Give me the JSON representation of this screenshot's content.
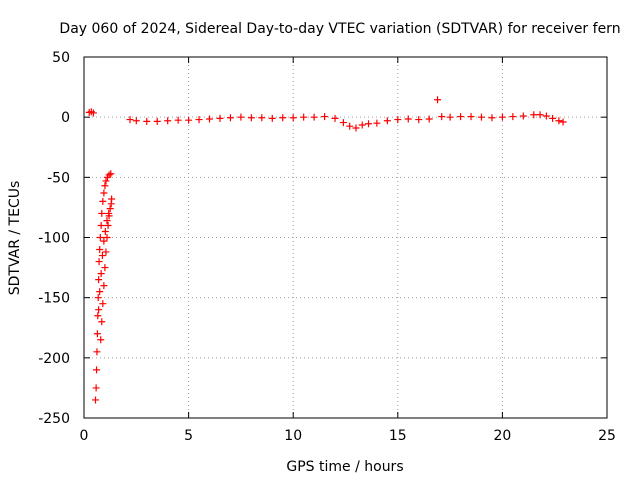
{
  "chart_data": {
    "type": "scatter",
    "title": "Day 060 of 2024, Sidereal Day-to-day VTEC variation (SDTVAR) for receiver fern",
    "xlabel": "GPS time / hours",
    "ylabel": "SDTVAR / TECUs",
    "xlim": [
      0,
      25
    ],
    "ylim": [
      -250,
      50
    ],
    "xticks": [
      0,
      5,
      10,
      15,
      20,
      25
    ],
    "yticks": [
      -250,
      -200,
      -150,
      -100,
      -50,
      0,
      50
    ],
    "xtick_labels": [
      "0",
      "5",
      "10",
      "15",
      "20",
      "25"
    ],
    "ytick_labels": [
      "-250",
      "-200",
      "-150",
      "-100",
      "-50",
      "0",
      "50"
    ],
    "grid": true,
    "marker": "+",
    "color": "#ff0000",
    "series": [
      {
        "name": "SDTVAR",
        "points": [
          [
            0.25,
            4.0
          ],
          [
            0.35,
            4.5
          ],
          [
            0.45,
            3.5
          ],
          [
            0.55,
            -235
          ],
          [
            0.58,
            -225
          ],
          [
            0.6,
            -210
          ],
          [
            0.62,
            -195
          ],
          [
            0.64,
            -180
          ],
          [
            0.66,
            -165
          ],
          [
            0.68,
            -150
          ],
          [
            0.7,
            -135
          ],
          [
            0.72,
            -120
          ],
          [
            0.75,
            -110
          ],
          [
            0.78,
            -100
          ],
          [
            0.82,
            -90
          ],
          [
            0.85,
            -80
          ],
          [
            0.9,
            -70
          ],
          [
            0.95,
            -63
          ],
          [
            1.0,
            -57
          ],
          [
            1.05,
            -53
          ],
          [
            1.12,
            -50
          ],
          [
            1.2,
            -48
          ],
          [
            1.28,
            -47
          ],
          [
            0.8,
            -185
          ],
          [
            0.85,
            -170
          ],
          [
            0.9,
            -155
          ],
          [
            0.95,
            -140
          ],
          [
            1.0,
            -125
          ],
          [
            1.05,
            -112
          ],
          [
            1.1,
            -100
          ],
          [
            1.15,
            -90
          ],
          [
            1.2,
            -82
          ],
          [
            1.25,
            -76
          ],
          [
            1.3,
            -72
          ],
          [
            1.32,
            -68
          ],
          [
            0.7,
            -160
          ],
          [
            0.75,
            -145
          ],
          [
            0.82,
            -130
          ],
          [
            0.88,
            -115
          ],
          [
            0.95,
            -103
          ],
          [
            1.02,
            -95
          ],
          [
            1.1,
            -86
          ],
          [
            1.18,
            -80
          ],
          [
            2.2,
            -2.0
          ],
          [
            2.5,
            -3.0
          ],
          [
            3.0,
            -3.5
          ],
          [
            3.5,
            -3.5
          ],
          [
            4.0,
            -3.0
          ],
          [
            4.5,
            -2.5
          ],
          [
            5.0,
            -2.5
          ],
          [
            5.5,
            -2.0
          ],
          [
            6.0,
            -1.5
          ],
          [
            6.5,
            -1.0
          ],
          [
            7.0,
            -0.5
          ],
          [
            7.5,
            0.0
          ],
          [
            8.0,
            -0.5
          ],
          [
            8.5,
            -0.5
          ],
          [
            9.0,
            -1.0
          ],
          [
            9.5,
            -0.5
          ],
          [
            10.0,
            -0.5
          ],
          [
            10.5,
            0.0
          ],
          [
            11.0,
            0.0
          ],
          [
            11.5,
            0.5
          ],
          [
            12.0,
            -1.0
          ],
          [
            12.4,
            -4.5
          ],
          [
            12.7,
            -7.5
          ],
          [
            13.0,
            -9.0
          ],
          [
            13.3,
            -6.5
          ],
          [
            13.6,
            -5.5
          ],
          [
            14.0,
            -5.0
          ],
          [
            14.5,
            -3.0
          ],
          [
            15.0,
            -2.0
          ],
          [
            15.5,
            -1.5
          ],
          [
            16.0,
            -2.0
          ],
          [
            16.5,
            -1.5
          ],
          [
            16.9,
            14.5
          ],
          [
            17.1,
            0.5
          ],
          [
            17.5,
            0.0
          ],
          [
            18.0,
            0.5
          ],
          [
            18.5,
            0.5
          ],
          [
            19.0,
            0.0
          ],
          [
            19.5,
            -0.5
          ],
          [
            20.0,
            0.0
          ],
          [
            20.5,
            0.5
          ],
          [
            21.0,
            1.0
          ],
          [
            21.5,
            2.0
          ],
          [
            21.8,
            2.0
          ],
          [
            22.1,
            1.0
          ],
          [
            22.4,
            -1.0
          ],
          [
            22.7,
            -3.0
          ],
          [
            22.9,
            -4.0
          ]
        ]
      }
    ]
  }
}
